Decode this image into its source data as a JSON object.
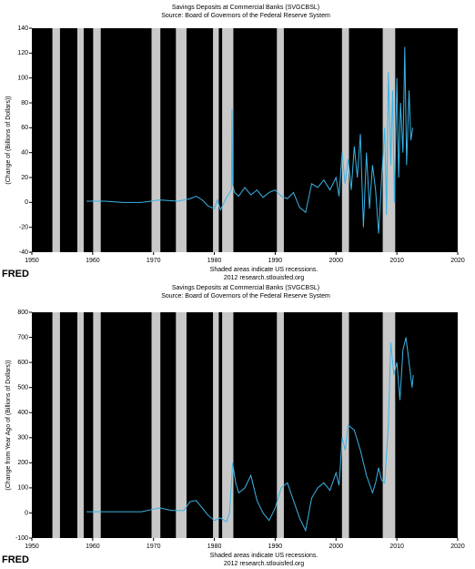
{
  "chart_data": [
    {
      "type": "line",
      "title": "Savings Deposits at Commercial Banks (SVGCBSL)",
      "subtitle": "Source: Board of Governors of the Federal Reserve System",
      "ylabel": "(Change of (Billions of Dollars))",
      "logo": "FRED",
      "note": "Shaded areas indicate US recessions.",
      "credit": "2012 research.stlouisfed.org",
      "xlim": [
        1950,
        2020
      ],
      "xticks": [
        1950,
        1960,
        1970,
        1980,
        1990,
        2000,
        2010,
        2020
      ],
      "ylim": [
        -40,
        140
      ],
      "yticks": [
        -40,
        -20,
        0,
        20,
        40,
        60,
        80,
        100,
        120,
        140
      ],
      "recessions": [
        [
          1953.6,
          1954.4
        ],
        [
          1957.7,
          1958.3
        ],
        [
          1960.3,
          1961.1
        ],
        [
          1969.9,
          1970.9
        ],
        [
          1973.9,
          1975.2
        ],
        [
          1980.0,
          1980.5
        ],
        [
          1981.5,
          1982.9
        ],
        [
          1990.5,
          1991.2
        ],
        [
          2001.2,
          2001.9
        ],
        [
          2007.9,
          2009.5
        ]
      ],
      "color": "#3ab4e6",
      "x": [
        1959,
        1962,
        1965,
        1968,
        1971,
        1974,
        1976,
        1977,
        1978,
        1979,
        1980,
        1980.5,
        1981,
        1982,
        1982.8,
        1982.9,
        1983.0,
        1983.3,
        1984,
        1985,
        1986,
        1987,
        1988,
        1989,
        1990,
        1991,
        1992,
        1993,
        1994,
        1995,
        1996,
        1997,
        1998,
        1999,
        2000,
        2000.5,
        2001,
        2001.5,
        2002,
        2002.5,
        2003,
        2003.5,
        2004,
        2004.5,
        2005,
        2005.5,
        2006,
        2006.5,
        2007,
        2007.5,
        2008,
        2008.3,
        2008.6,
        2009,
        2009.3,
        2009.6,
        2010,
        2010.3,
        2010.6,
        2011,
        2011.3,
        2011.6,
        2012,
        2012.3,
        2012.6
      ],
      "values": [
        1,
        1,
        0,
        0,
        2,
        1,
        3,
        5,
        2,
        -3,
        -5,
        2,
        -6,
        4,
        10,
        75,
        15,
        8,
        5,
        12,
        6,
        10,
        4,
        8,
        10,
        5,
        3,
        8,
        -4,
        -8,
        15,
        12,
        18,
        10,
        20,
        5,
        40,
        15,
        35,
        10,
        45,
        20,
        55,
        -20,
        40,
        -5,
        30,
        10,
        -25,
        20,
        60,
        -10,
        105,
        30,
        90,
        0,
        100,
        20,
        80,
        40,
        125,
        30,
        90,
        50,
        60
      ]
    },
    {
      "type": "line",
      "title": "Savings Deposits at Commercial Banks (SVGCBSL)",
      "subtitle": "Source: Board of Governors of the Federal Reserve System",
      "ylabel": "(Change from Year Ago of (Billions of Dollars))",
      "logo": "FRED",
      "note": "Shaded areas indicate US recessions.",
      "credit": "2012 research.stlouisfed.org",
      "xlim": [
        1950,
        2020
      ],
      "xticks": [
        1950,
        1960,
        1970,
        1980,
        1990,
        2000,
        2010,
        2020
      ],
      "ylim": [
        -100,
        800
      ],
      "yticks": [
        -100,
        0,
        100,
        200,
        300,
        400,
        500,
        600,
        700,
        800
      ],
      "recessions": [
        [
          1953.6,
          1954.4
        ],
        [
          1957.7,
          1958.3
        ],
        [
          1960.3,
          1961.1
        ],
        [
          1969.9,
          1970.9
        ],
        [
          1973.9,
          1975.2
        ],
        [
          1980.0,
          1980.5
        ],
        [
          1981.5,
          1982.9
        ],
        [
          1990.5,
          1991.2
        ],
        [
          2001.2,
          2001.9
        ],
        [
          2007.9,
          2009.5
        ]
      ],
      "color": "#3ab4e6",
      "x": [
        1959,
        1962,
        1965,
        1968,
        1970,
        1971,
        1973,
        1975,
        1976,
        1977,
        1978,
        1979,
        1980,
        1981,
        1982,
        1982.5,
        1983,
        1983.5,
        1984,
        1985,
        1986,
        1987,
        1988,
        1989,
        1990,
        1991,
        1992,
        1993,
        1994,
        1995,
        1996,
        1997,
        1998,
        1999,
        2000,
        2000.5,
        2001,
        2001.5,
        2002,
        2003,
        2004,
        2005,
        2006,
        2006.5,
        2007,
        2007.5,
        2008,
        2008.6,
        2009,
        2009.5,
        2010,
        2010.5,
        2011,
        2011.5,
        2012,
        2012.5,
        2012.7
      ],
      "values": [
        5,
        5,
        5,
        5,
        15,
        20,
        10,
        10,
        45,
        50,
        20,
        -10,
        -30,
        -20,
        -35,
        0,
        200,
        120,
        80,
        100,
        150,
        50,
        0,
        -30,
        20,
        100,
        120,
        50,
        -20,
        -70,
        60,
        100,
        120,
        90,
        160,
        110,
        300,
        250,
        350,
        330,
        250,
        150,
        80,
        120,
        180,
        130,
        120,
        350,
        680,
        550,
        600,
        450,
        650,
        700,
        600,
        500,
        550
      ]
    }
  ]
}
